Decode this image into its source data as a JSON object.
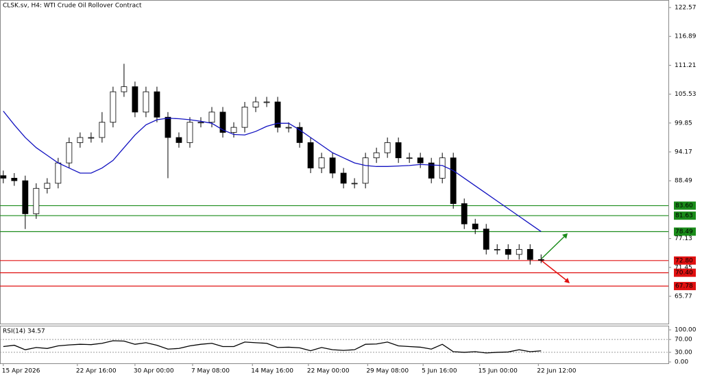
{
  "chart_data": {
    "type": "candlestick",
    "title": "CLSK.sv, H4:  WTI Crude Oil Rollover Contract",
    "xlim": [
      -0.3,
      60.6
    ],
    "xticks": [
      {
        "value": 0,
        "label": "15 Apr 2026"
      },
      {
        "value": 6.75,
        "label": "22 Apr 16:00"
      },
      {
        "value": 12,
        "label": "30 Apr 00:00"
      },
      {
        "value": 17.25,
        "label": "7 May 08:00"
      },
      {
        "value": 22.7,
        "label": "14 May 16:00"
      },
      {
        "value": 27.8,
        "label": "22 May 00:00"
      },
      {
        "value": 33.2,
        "label": "29 May 08:00"
      },
      {
        "value": 38.25,
        "label": "5 Jun 16:00"
      },
      {
        "value": 43.4,
        "label": "15 Jun 00:00"
      },
      {
        "value": 48.75,
        "label": "22 Jun 12:00"
      }
    ],
    "ylim": [
      60.39,
      124.05
    ],
    "yticks": [
      122.57,
      116.89,
      111.21,
      105.53,
      99.85,
      94.17,
      88.49,
      77.13,
      71.45,
      65.77
    ],
    "open": [
      89.5,
      89,
      88.5,
      82,
      87,
      88,
      92,
      96,
      97,
      97,
      100,
      106,
      107,
      102,
      106,
      101,
      97,
      96,
      100,
      100,
      102,
      98,
      99,
      103,
      104,
      104,
      99,
      99,
      96,
      91,
      93,
      90,
      88,
      88,
      93,
      94,
      96,
      93,
      93,
      92,
      89,
      93,
      84,
      80,
      79,
      75,
      75,
      74,
      75,
      73
    ],
    "high": [
      90.5,
      90,
      89.5,
      88,
      89,
      93,
      97,
      98,
      98,
      102,
      107,
      111.5,
      108,
      107,
      107,
      102,
      98,
      101,
      101,
      103,
      103,
      100,
      104,
      105,
      105,
      105,
      100,
      100,
      97,
      94,
      94,
      91,
      89,
      94,
      95,
      97,
      97,
      94,
      94,
      93,
      94,
      94,
      85,
      81,
      80,
      76,
      76,
      76,
      76,
      74
    ],
    "low": [
      88,
      87.5,
      79,
      81,
      86,
      87,
      91,
      95,
      96,
      96,
      99,
      105,
      101,
      101,
      100,
      89,
      95,
      95,
      99,
      99,
      97,
      97,
      98,
      102,
      103,
      98,
      98,
      95,
      90,
      90,
      89,
      87,
      87,
      87,
      92,
      93,
      92,
      92,
      91,
      88,
      88,
      83,
      79,
      78,
      74,
      74,
      73,
      73,
      72,
      72.3
    ],
    "close": [
      89,
      88.5,
      82,
      87,
      88,
      92,
      96,
      97,
      97,
      100,
      106,
      107,
      102,
      106,
      101,
      97,
      96,
      100,
      100,
      102,
      98,
      99,
      103,
      104,
      104,
      99,
      99,
      96,
      91,
      93,
      90,
      88,
      88,
      93,
      94,
      96,
      93,
      93,
      92,
      89,
      93,
      84,
      80,
      79,
      75,
      75,
      74,
      75,
      73,
      72.9
    ],
    "ma": {
      "color": "#1010c0",
      "values": [
        102.2,
        99.5,
        97,
        95,
        93.5,
        92,
        91,
        90,
        90,
        91,
        92.5,
        95,
        97.5,
        99.5,
        100.5,
        100.8,
        100.7,
        100.5,
        100.2,
        99.8,
        98.5,
        97.6,
        97.5,
        98.2,
        99.2,
        99.8,
        99.8,
        98.5,
        97,
        95.5,
        94,
        93,
        92,
        91.5,
        91.3,
        91.3,
        91.4,
        91.5,
        91.7,
        91.6,
        91.5,
        90.5,
        89,
        87.5,
        86,
        84.5,
        83,
        81.5,
        80,
        78.5
      ]
    },
    "levels": [
      {
        "value": 83.6,
        "label": "83.60",
        "color": "#1a8c1a"
      },
      {
        "value": 81.63,
        "label": "81.63",
        "color": "#1a8c1a"
      },
      {
        "value": 78.49,
        "label": "78.49",
        "color": "#1a8c1a"
      },
      {
        "value": 72.8,
        "label": "72.80",
        "color": "#e01010"
      },
      {
        "value": 70.4,
        "label": "70.40",
        "color": "#e01010"
      },
      {
        "value": 67.78,
        "label": "67.78",
        "color": "#e01010"
      }
    ],
    "rsi": {
      "title": "RSI(14) 34.57",
      "ylim": [
        -4.3,
        113
      ],
      "yticks": [
        {
          "value": 100,
          "label": "100.00"
        },
        {
          "value": 70,
          "label": "70.00"
        },
        {
          "value": 30,
          "label": "30.00"
        },
        {
          "value": 0,
          "label": "0.00"
        }
      ],
      "values": [
        48,
        52,
        38,
        45,
        42,
        50,
        53,
        55,
        54,
        58,
        66,
        65,
        55,
        60,
        52,
        40,
        42,
        50,
        55,
        58,
        48,
        48,
        62,
        60,
        58,
        45,
        46,
        44,
        35,
        45,
        38,
        36,
        38,
        55,
        56,
        62,
        50,
        48,
        46,
        40,
        55,
        32,
        30,
        32,
        28,
        30,
        31,
        38,
        32,
        34.57
      ]
    }
  }
}
